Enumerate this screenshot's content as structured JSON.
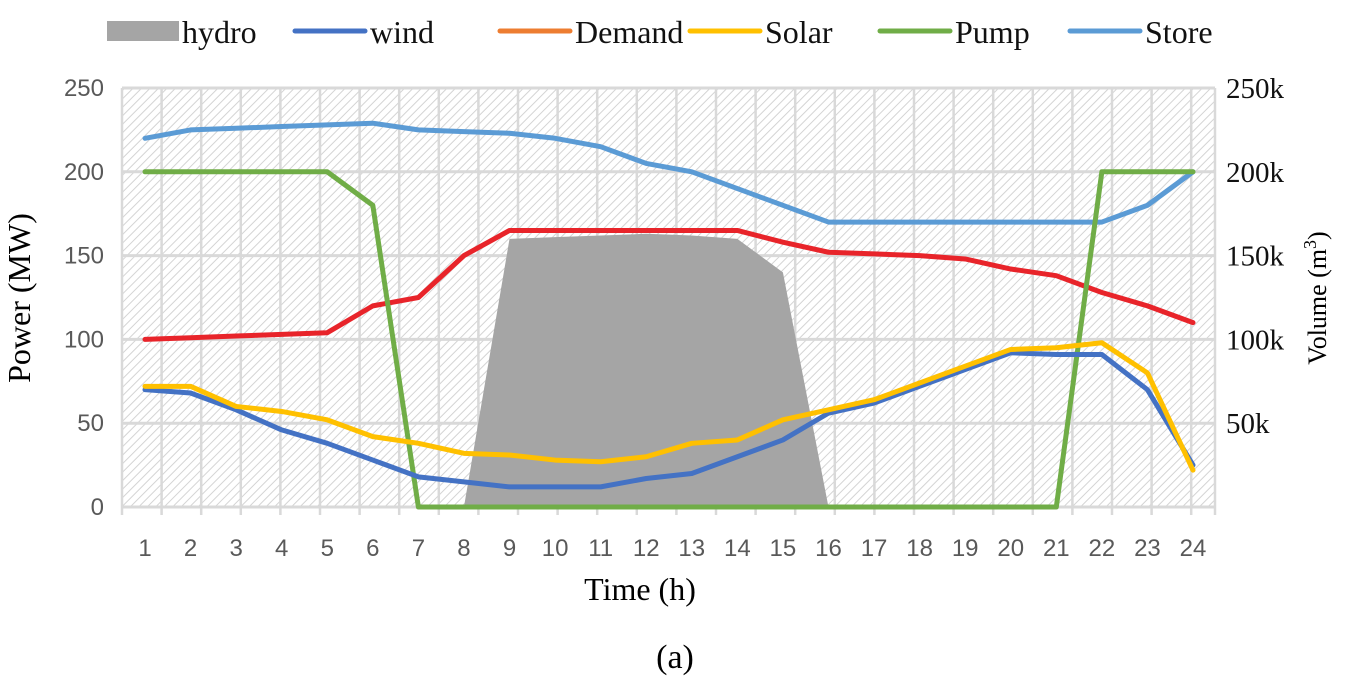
{
  "chart_data": {
    "type": "line",
    "caption": "(a)",
    "xlabel": "Time (h)",
    "ylabel": "Power (MW)",
    "y2label_main": "Volume (m",
    "y2label_sup": "3",
    "y2label_end": ")",
    "ylim": [
      0,
      250
    ],
    "y2lim": [
      0,
      250000
    ],
    "grid": true,
    "legend_position": "top",
    "x": [
      1,
      2,
      3,
      4,
      5,
      6,
      7,
      8,
      9,
      10,
      11,
      12,
      13,
      14,
      15,
      16,
      17,
      18,
      19,
      20,
      21,
      22,
      23,
      24
    ],
    "x_tick_labels": [
      "1",
      "2",
      "3",
      "4",
      "5",
      "6",
      "7",
      "8",
      "9",
      "10",
      "11",
      "12",
      "13",
      "14",
      "15",
      "16",
      "17",
      "18",
      "19",
      "20",
      "21",
      "22",
      "23",
      "24"
    ],
    "y_tick_labels": [
      "0",
      "50",
      "100",
      "150",
      "200",
      "250"
    ],
    "y2_tick_labels": [
      "50k",
      "100k",
      "150k",
      "200k",
      "250k"
    ],
    "legend": [
      {
        "name": "hydro",
        "color": "#A5A5A5",
        "kind": "area"
      },
      {
        "name": "wind",
        "color": "#4472C4",
        "kind": "line"
      },
      {
        "name": "Demand",
        "color": "#ED7D31",
        "kind": "line"
      },
      {
        "name": "Solar",
        "color": "#FFC000",
        "kind": "line"
      },
      {
        "name": "Pump",
        "color": "#70AD47",
        "kind": "line"
      },
      {
        "name": "Store",
        "color": "#5B9BD5",
        "kind": "line"
      }
    ],
    "series": [
      {
        "name": "hydro",
        "type": "area",
        "axis": "left",
        "color": "#A5A5A5",
        "values": [
          0,
          0,
          0,
          0,
          0,
          0,
          0,
          0,
          160,
          161,
          162,
          163,
          162,
          160,
          140,
          0,
          0,
          0,
          0,
          0,
          0,
          0,
          0,
          0
        ]
      },
      {
        "name": "Store",
        "type": "line",
        "axis": "right",
        "color": "#5B9BD5",
        "values": [
          220000,
          225000,
          226000,
          227000,
          228000,
          229000,
          225000,
          224000,
          223000,
          220000,
          215000,
          205000,
          200000,
          190000,
          180000,
          170000,
          170000,
          170000,
          170000,
          170000,
          170000,
          170000,
          180000,
          200000
        ]
      },
      {
        "type": "line",
        "axis": "left",
        "color": "#E8242A",
        "values": [
          100,
          101,
          102,
          103,
          104,
          120,
          125,
          150,
          165,
          165,
          165,
          165,
          165,
          165,
          158,
          152,
          151,
          150,
          148,
          142,
          138,
          128,
          120,
          110
        ]
      },
      {
        "name": "Pump",
        "type": "line",
        "axis": "left",
        "color": "#70AD47",
        "values": [
          200,
          200,
          200,
          200,
          200,
          180,
          0,
          0,
          0,
          0,
          0,
          0,
          0,
          0,
          0,
          0,
          0,
          0,
          0,
          0,
          0,
          200,
          200,
          200
        ]
      },
      {
        "name": "wind",
        "type": "line",
        "axis": "left",
        "color": "#4472C4",
        "values": [
          70,
          68,
          58,
          46,
          38,
          28,
          18,
          15,
          12,
          12,
          12,
          17,
          20,
          30,
          40,
          56,
          62,
          72,
          82,
          92,
          91,
          91,
          70,
          25
        ]
      },
      {
        "name": "Solar",
        "type": "line",
        "axis": "left",
        "color": "#FFC000",
        "values": [
          72,
          72,
          60,
          57,
          52,
          42,
          38,
          32,
          31,
          28,
          27,
          30,
          38,
          40,
          52,
          58,
          64,
          74,
          84,
          94,
          95,
          98,
          80,
          22
        ]
      }
    ]
  }
}
